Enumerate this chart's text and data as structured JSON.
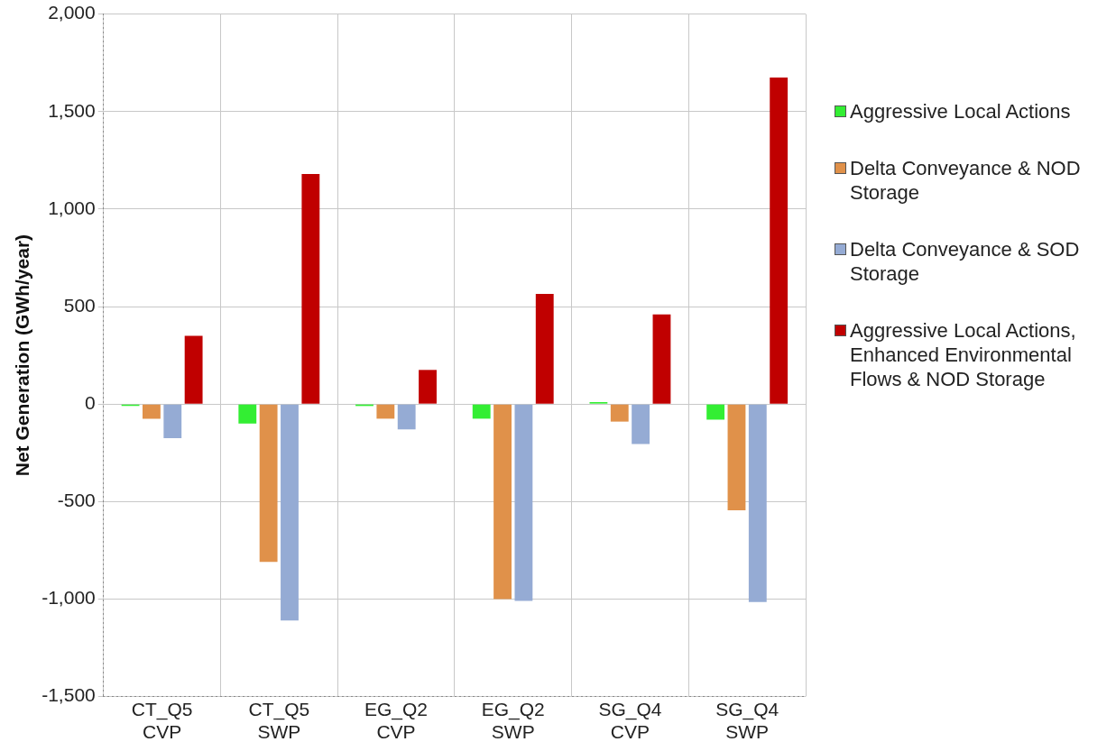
{
  "chart_data": {
    "type": "bar",
    "ylabel": "Net Generation (GWh/year)",
    "categories": [
      "CT_Q5 CVP",
      "CT_Q5 SWP",
      "EG_Q2 CVP",
      "EG_Q2 SWP",
      "SG_Q4 CVP",
      "SG_Q4 SWP"
    ],
    "series": [
      {
        "name": "Aggressive Local Actions",
        "color": "#33ee33",
        "values": [
          -10,
          -100,
          -10,
          -75,
          10,
          -80
        ]
      },
      {
        "name": "Delta Conveyance & NOD Storage",
        "color": "#e0914a",
        "values": [
          -75,
          -810,
          -75,
          -1000,
          -90,
          -545
        ]
      },
      {
        "name": "Delta Conveyance & SOD Storage",
        "color": "#95abd4",
        "values": [
          -175,
          -1110,
          -130,
          -1010,
          -205,
          -1015
        ]
      },
      {
        "name": "Aggressive Local Actions, Enhanced Environmental Flows & NOD Storage",
        "color": "#c00000",
        "values": [
          350,
          1180,
          175,
          565,
          460,
          1675
        ]
      }
    ],
    "ylim": [
      -1500,
      2000
    ],
    "yticks": [
      {
        "value": -1500,
        "label": "-1,500"
      },
      {
        "value": -1000,
        "label": "-1,000"
      },
      -500,
      0,
      500,
      {
        "value": 1000,
        "label": "1,000"
      },
      {
        "value": 1500,
        "label": "1,500"
      },
      {
        "value": 2000,
        "label": "2,000"
      }
    ],
    "grid": true,
    "legend": "right"
  }
}
